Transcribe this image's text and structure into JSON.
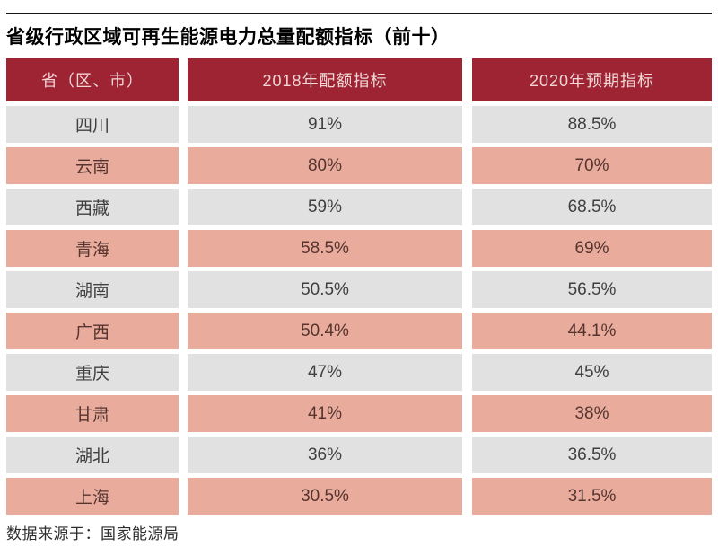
{
  "title": "省级行政区域可再生能源电力总量配额指标（前十）",
  "source_note": "数据来源于：国家能源局",
  "colors": {
    "header_bg": "#9e2433",
    "header_text": "#f0d6d6",
    "row_gray_bg": "#e1e1e1",
    "row_pink_bg": "#e9ac9c",
    "row_gray_text": "#3f3f3f",
    "row_pink_text": "#553430",
    "top_rule": "#161616"
  },
  "chart_data": {
    "type": "table",
    "title": "省级行政区域可再生能源电力总量配额指标（前十）",
    "columns": [
      "省（区、市）",
      "2018年配额指标",
      "2020年预期指标"
    ],
    "rows": [
      {
        "province": "四川",
        "quota_2018": "91%",
        "expected_2020": "88.5%"
      },
      {
        "province": "云南",
        "quota_2018": "80%",
        "expected_2020": "70%"
      },
      {
        "province": "西藏",
        "quota_2018": "59%",
        "expected_2020": "68.5%"
      },
      {
        "province": "青海",
        "quota_2018": "58.5%",
        "expected_2020": "69%"
      },
      {
        "province": "湖南",
        "quota_2018": "50.5%",
        "expected_2020": "56.5%"
      },
      {
        "province": "广西",
        "quota_2018": "50.4%",
        "expected_2020": "44.1%"
      },
      {
        "province": "重庆",
        "quota_2018": "47%",
        "expected_2020": "45%"
      },
      {
        "province": "甘肃",
        "quota_2018": "41%",
        "expected_2020": "38%"
      },
      {
        "province": "湖北",
        "quota_2018": "36%",
        "expected_2020": "36.5%"
      },
      {
        "province": "上海",
        "quota_2018": "30.5%",
        "expected_2020": "31.5%"
      }
    ],
    "source": "数据来源于：国家能源局",
    "layout": {
      "striped": "gray/pink alternating",
      "header_style": "dark-red"
    }
  }
}
